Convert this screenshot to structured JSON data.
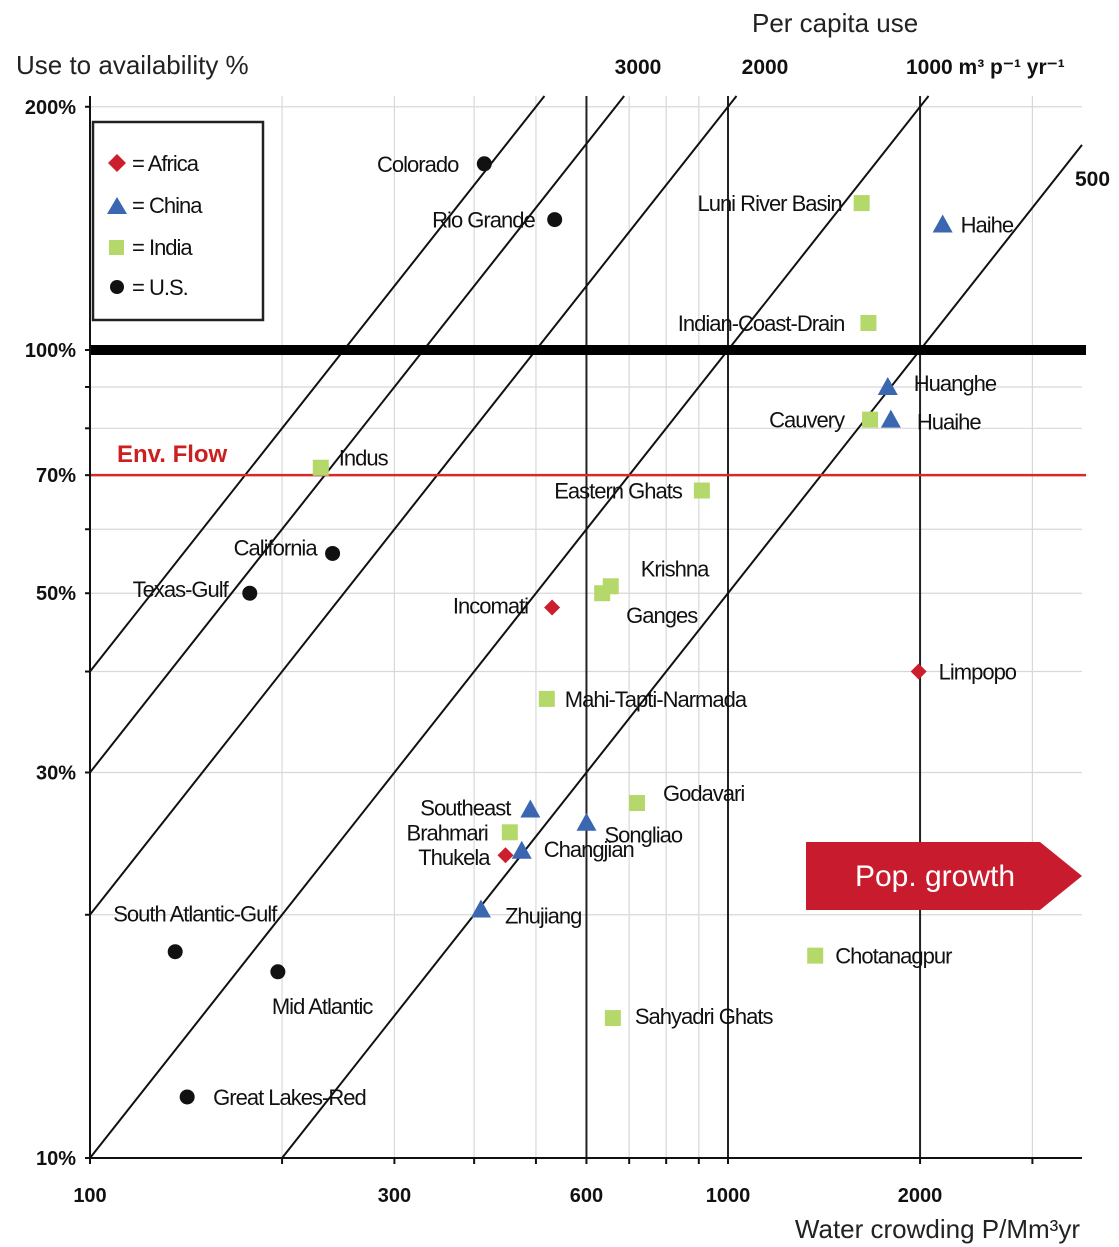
{
  "chart_data": {
    "type": "scatter",
    "x_axis": {
      "label": "Water crowding P/Mm³yr",
      "scale": "log",
      "range": [
        100,
        3500
      ],
      "ticks": [
        100,
        300,
        600,
        1000,
        2000
      ],
      "tick_labels": [
        "100",
        "300",
        "600",
        "1000",
        "2000"
      ]
    },
    "y_axis": {
      "label": "Use to availability %",
      "scale": "log",
      "range": [
        10,
        210
      ],
      "ticks": [
        10,
        30,
        50,
        70,
        100,
        200
      ],
      "tick_labels": [
        "10%",
        "30%",
        "50%",
        "70%",
        "100%",
        "200%"
      ]
    },
    "top_axis": {
      "label": "Per capita use",
      "tick_labels": [
        "3000",
        "2000",
        "1000 m³ p⁻¹ yr⁻¹"
      ],
      "diagonal_label": "500"
    },
    "per_capita_lines": [
      4000,
      3000,
      2000,
      1000,
      500
    ],
    "reference_lines": [
      {
        "y": 100,
        "label": ""
      },
      {
        "y": 70,
        "label": "Env. Flow",
        "color": "#d42a2a"
      }
    ],
    "legend": {
      "items": [
        {
          "key": "africa",
          "label": "= Africa",
          "marker": "diamond",
          "color": "#cc1f2e"
        },
        {
          "key": "china",
          "label": "= China",
          "marker": "triangle",
          "color": "#3a67b0"
        },
        {
          "key": "india",
          "label": "= India",
          "marker": "square",
          "color": "#b5d86a"
        },
        {
          "key": "us",
          "label": "= U.S.",
          "marker": "circle",
          "color": "#111111"
        }
      ]
    },
    "points": [
      {
        "name": "Colorado",
        "group": "us",
        "x": 415,
        "y": 170
      },
      {
        "name": "Rio Grande",
        "group": "us",
        "x": 535,
        "y": 145
      },
      {
        "name": "California",
        "group": "us",
        "x": 240,
        "y": 56
      },
      {
        "name": "Texas-Gulf",
        "group": "us",
        "x": 178,
        "y": 50
      },
      {
        "name": "South Atlantic-Gulf",
        "group": "us",
        "x": 136,
        "y": 18
      },
      {
        "name": "Mid Atlantic",
        "group": "us",
        "x": 197,
        "y": 17
      },
      {
        "name": "Great Lakes-Red",
        "group": "us",
        "x": 142,
        "y": 11.9
      },
      {
        "name": "Luni River Basin",
        "group": "india",
        "x": 1620,
        "y": 152
      },
      {
        "name": "Indian-Coast-Drain",
        "group": "india",
        "x": 1660,
        "y": 108
      },
      {
        "name": "Cauvery",
        "group": "india",
        "x": 1670,
        "y": 82
      },
      {
        "name": "Indus",
        "group": "india",
        "x": 230,
        "y": 71.5
      },
      {
        "name": "Eastern Ghats",
        "group": "india",
        "x": 910,
        "y": 67
      },
      {
        "name": "Krishna",
        "group": "india",
        "x": 655,
        "y": 51
      },
      {
        "name": "Ganges",
        "group": "india",
        "x": 635,
        "y": 50
      },
      {
        "name": "Mahi-Tapti-Narmada",
        "group": "india",
        "x": 520,
        "y": 37
      },
      {
        "name": "Godavari",
        "group": "india",
        "x": 720,
        "y": 27.5
      },
      {
        "name": "Brahmari",
        "group": "india",
        "x": 455,
        "y": 25.3
      },
      {
        "name": "Chotanagpur",
        "group": "india",
        "x": 1370,
        "y": 17.8
      },
      {
        "name": "Sahyadri Ghats",
        "group": "india",
        "x": 660,
        "y": 14.9
      },
      {
        "name": "Haihe",
        "group": "china",
        "x": 2170,
        "y": 143
      },
      {
        "name": "Huanghe",
        "group": "china",
        "x": 1780,
        "y": 90
      },
      {
        "name": "Huaihe",
        "group": "china",
        "x": 1800,
        "y": 82
      },
      {
        "name": "Southeast",
        "group": "china",
        "x": 490,
        "y": 27
      },
      {
        "name": "Songliao",
        "group": "china",
        "x": 600,
        "y": 26
      },
      {
        "name": "Changjian",
        "group": "china",
        "x": 475,
        "y": 24
      },
      {
        "name": "Zhujiang",
        "group": "china",
        "x": 410,
        "y": 20.3
      },
      {
        "name": "Incomati",
        "group": "africa",
        "x": 530,
        "y": 48
      },
      {
        "name": "Limpopo",
        "group": "africa",
        "x": 1990,
        "y": 40
      },
      {
        "name": "Thukela",
        "group": "africa",
        "x": 448,
        "y": 23.7
      }
    ],
    "annotation": {
      "label": "Pop. growth",
      "color": "#c81b2e"
    }
  }
}
